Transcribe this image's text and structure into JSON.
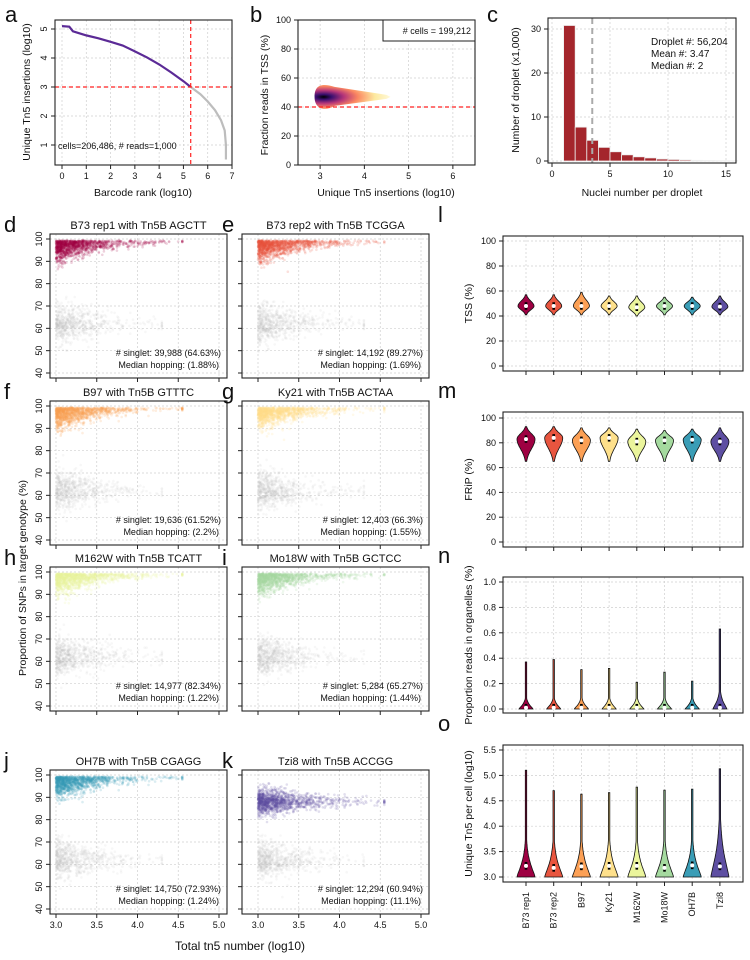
{
  "groups": [
    "B73 rep1",
    "B73 rep2",
    "B97",
    "Ky21",
    "M162W",
    "Mo18W",
    "OH7B",
    "Tzi8"
  ],
  "group_colors": [
    "#9E0142",
    "#E8553F",
    "#FCA055",
    "#FEE08B",
    "#EBF59C",
    "#A5DA9F",
    "#3A9DB6",
    "#5E4FA2"
  ],
  "shared_labels": {
    "scatter_ylabel": "Proportion of SNPs in target genotype (%)",
    "scatter_xlabel": "Total tn5 number (log10)"
  },
  "chart_data": [
    {
      "id": "a",
      "type": "line",
      "panel_letter": "a",
      "xlabel": "Barcode rank (log10)",
      "ylabel": "Unique Tn5 insertions (log10)",
      "xlim": [
        0,
        7
      ],
      "xticks": [
        0,
        1,
        2,
        3,
        4,
        5,
        6,
        7
      ],
      "yticks": [
        1,
        2,
        3,
        4,
        5
      ],
      "annotation": "cells=206,486, # reads=1,000",
      "thresholds": {
        "x": 5.3,
        "y": 3
      },
      "series": [
        {
          "color": "#5B2A96",
          "x": [
            0,
            0.3,
            0.45,
            0.6,
            1,
            1.5,
            2,
            2.5,
            3,
            3.5,
            4,
            4.5,
            5,
            5.3
          ],
          "y": [
            5.1,
            5.08,
            4.92,
            4.88,
            4.78,
            4.68,
            4.56,
            4.43,
            4.23,
            4.02,
            3.78,
            3.5,
            3.2,
            3.0
          ]
        },
        {
          "color": "#BDBDBD",
          "x": [
            5.3,
            5.7,
            6.0,
            6.3,
            6.55,
            6.7,
            6.75,
            6.75
          ],
          "y": [
            3.0,
            2.75,
            2.5,
            2.2,
            1.85,
            1.5,
            1.0,
            0.5
          ]
        }
      ]
    },
    {
      "id": "b",
      "type": "heatmap",
      "panel_letter": "b",
      "xlabel": "Unique Tn5 insertions (log10)",
      "ylabel": "Fraction reads in TSS (%)",
      "xlim": [
        2.5,
        6.5
      ],
      "ylim": [
        0,
        100
      ],
      "xticks": [
        3,
        4,
        5,
        6
      ],
      "yticks": [
        0,
        20,
        40,
        60,
        80,
        100
      ],
      "legend": "# cells = 199,212",
      "threshold_y": 40,
      "density_peak": {
        "x": 3.1,
        "y": 47
      },
      "density_extent_x": 4.5
    },
    {
      "id": "c",
      "type": "bar",
      "panel_letter": "c",
      "xlabel": "Nuclei number per droplet",
      "ylabel": "Number of droplet (x1,000)",
      "xlim": [
        0,
        15
      ],
      "ylim": [
        0,
        30
      ],
      "xticks": [
        0,
        5,
        10,
        15
      ],
      "yticks": [
        0,
        10,
        20,
        30
      ],
      "bin_start": [
        1,
        2,
        3,
        4,
        5,
        6,
        7,
        8,
        9,
        10,
        11,
        12,
        13,
        14,
        15
      ],
      "values": [
        30.8,
        7.7,
        4.7,
        3.1,
        2.1,
        1.4,
        0.95,
        0.7,
        0.45,
        0.35,
        0.25,
        0.15,
        0.1,
        0.07,
        0.05
      ],
      "mean_line": 3.47,
      "bar_color": "#A4262C",
      "annotations": [
        "Droplet #: 56,204",
        "Mean #: 3.47",
        "Median #: 2"
      ]
    },
    {
      "id": "d",
      "type": "scatter",
      "panel_letter": "d",
      "title": "B73 rep1 with Tn5B AGCTT",
      "singlet": "# singlet: 39,988 (64.63%)",
      "hopping": "Median hopping: (1.88%)",
      "group": 0,
      "cluster_center": 98,
      "cluster_floor": 78,
      "xlim": [
        3,
        5
      ],
      "ylim": [
        40,
        100
      ],
      "xticks": [
        "3.0",
        "3.5",
        "4.0",
        "4.5",
        "5.0"
      ],
      "yticks": [
        40,
        50,
        60,
        70,
        80,
        90,
        100
      ]
    },
    {
      "id": "e",
      "type": "scatter",
      "panel_letter": "e",
      "title": "B73 rep2  with Tn5B TCGGA",
      "singlet": "# singlet: 14,192 (89.27%)",
      "hopping": "Median hopping: (1.69%)",
      "group": 1,
      "cluster_center": 98,
      "cluster_floor": 78,
      "xlim": [
        3,
        5
      ],
      "ylim": [
        40,
        100
      ],
      "xticks": [
        "3.0",
        "3.5",
        "4.0",
        "4.5",
        "5.0"
      ],
      "yticks": [
        40,
        50,
        60,
        70,
        80,
        90,
        100
      ]
    },
    {
      "id": "f",
      "type": "scatter",
      "panel_letter": "f",
      "title": "B97 with Tn5B GTTTC",
      "singlet": "# singlet: 19,636 (61.52%)",
      "hopping": "Median hopping: (2.2%)",
      "group": 2,
      "cluster_center": 98,
      "cluster_floor": 78,
      "xlim": [
        3,
        5
      ],
      "ylim": [
        40,
        100
      ],
      "xticks": [
        "3.0",
        "3.5",
        "4.0",
        "4.5",
        "5.0"
      ],
      "yticks": [
        40,
        50,
        60,
        70,
        80,
        90,
        100
      ]
    },
    {
      "id": "g",
      "type": "scatter",
      "panel_letter": "g",
      "title": "Ky21 with Tn5B ACTAA",
      "singlet": "# singlet: 12,403 (66.3%)",
      "hopping": "Median hopping: (1.55%)",
      "group": 3,
      "cluster_center": 98,
      "cluster_floor": 78,
      "xlim": [
        3,
        5
      ],
      "ylim": [
        40,
        100
      ],
      "xticks": [
        "3.0",
        "3.5",
        "4.0",
        "4.5",
        "5.0"
      ],
      "yticks": [
        40,
        50,
        60,
        70,
        80,
        90,
        100
      ]
    },
    {
      "id": "h",
      "type": "scatter",
      "panel_letter": "h",
      "title": "M162W with Tn5B TCATT",
      "singlet": "# singlet: 14,977 (82.34%)",
      "hopping": "Median hopping: (1.22%)",
      "group": 4,
      "cluster_center": 98,
      "cluster_floor": 78,
      "xlim": [
        3,
        5
      ],
      "ylim": [
        40,
        100
      ],
      "xticks": [
        "3.0",
        "3.5",
        "4.0",
        "4.5",
        "5.0"
      ],
      "yticks": [
        40,
        50,
        60,
        70,
        80,
        90,
        100
      ]
    },
    {
      "id": "i",
      "type": "scatter",
      "panel_letter": "i",
      "title": "Mo18W with Tn5B GCTCC",
      "singlet": "# singlet: 5,284 (65.27%)",
      "hopping": "Median hopping: (1.44%)",
      "group": 5,
      "cluster_center": 98,
      "cluster_floor": 78,
      "xlim": [
        3,
        5
      ],
      "ylim": [
        40,
        100
      ],
      "xticks": [
        "3.0",
        "3.5",
        "4.0",
        "4.5",
        "5.0"
      ],
      "yticks": [
        40,
        50,
        60,
        70,
        80,
        90,
        100
      ]
    },
    {
      "id": "j",
      "type": "scatter",
      "panel_letter": "j",
      "title": "OH7B with Tn5B CGAGG",
      "singlet": "# singlet: 14,750 (72.93%)",
      "hopping": "Median hopping: (1.24%)",
      "group": 6,
      "cluster_center": 98,
      "cluster_floor": 78,
      "xlim": [
        3,
        5
      ],
      "ylim": [
        40,
        100
      ],
      "xticks": [
        "3.0",
        "3.5",
        "4.0",
        "4.5",
        "5.0"
      ],
      "yticks": [
        40,
        50,
        60,
        70,
        80,
        90,
        100
      ]
    },
    {
      "id": "k",
      "type": "scatter",
      "panel_letter": "k",
      "title": "Tzi8 with Tn5B ACCGG",
      "singlet": "# singlet: 12,294 (60.94%)",
      "hopping": "Median hopping: (11.1%)",
      "group": 7,
      "cluster_center": 88,
      "cluster_floor": 78,
      "xlim": [
        3,
        5
      ],
      "ylim": [
        40,
        100
      ],
      "xticks": [
        "3.0",
        "3.5",
        "4.0",
        "4.5",
        "5.0"
      ],
      "yticks": [
        40,
        50,
        60,
        70,
        80,
        90,
        100
      ]
    },
    {
      "id": "l",
      "type": "violin",
      "panel_letter": "l",
      "ylabel": "TSS (%)",
      "ylim": [
        0,
        100
      ],
      "yticks": [
        "0",
        "20",
        "40",
        "60",
        "80",
        "100"
      ],
      "min": [
        41,
        41,
        41,
        41,
        40,
        41,
        41,
        41
      ],
      "max": [
        57,
        57,
        59,
        56,
        56,
        55,
        55,
        56
      ],
      "median": [
        48,
        48,
        48,
        48,
        47,
        48,
        48,
        47.5
      ]
    },
    {
      "id": "m",
      "type": "violin",
      "panel_letter": "m",
      "ylabel": "FRiP (%)",
      "ylim": [
        0,
        100
      ],
      "yticks": [
        "0",
        "20",
        "40",
        "60",
        "80",
        "100"
      ],
      "min": [
        65,
        65,
        65,
        65,
        65,
        65,
        65,
        65
      ],
      "max": [
        93,
        93,
        92,
        92,
        91,
        90,
        91,
        92
      ],
      "median": [
        83,
        84,
        82,
        84,
        81,
        82,
        82.5,
        81
      ]
    },
    {
      "id": "n",
      "type": "violin",
      "panel_letter": "n",
      "ylabel": "Proportion reads in organelles (%)",
      "ylim": [
        0,
        1
      ],
      "yticks": [
        "0.0",
        "0.2",
        "0.4",
        "0.6",
        "0.8",
        "1.0"
      ],
      "min": [
        0,
        0,
        0,
        0,
        0,
        0,
        0,
        0
      ],
      "max": [
        0.37,
        0.39,
        0.31,
        0.32,
        0.21,
        0.29,
        0.22,
        0.63
      ],
      "median": [
        0.01,
        0.01,
        0.01,
        0.01,
        0.01,
        0.01,
        0.01,
        0.01
      ]
    },
    {
      "id": "o",
      "type": "violin",
      "panel_letter": "o",
      "ylabel": "Unique Tn5 per cell (log10)",
      "ylim": [
        3.0,
        5.5
      ],
      "yticks": [
        "3.0",
        "3.5",
        "4.0",
        "4.5",
        "5.0",
        "5.5"
      ],
      "min": [
        3,
        3,
        3,
        3,
        3,
        3,
        3,
        3
      ],
      "max": [
        5.1,
        4.7,
        4.63,
        4.66,
        4.77,
        4.71,
        4.73,
        5.13
      ],
      "median": [
        3.22,
        3.18,
        3.21,
        3.22,
        3.22,
        3.18,
        3.23,
        3.21
      ],
      "show_group_labels": true
    }
  ]
}
